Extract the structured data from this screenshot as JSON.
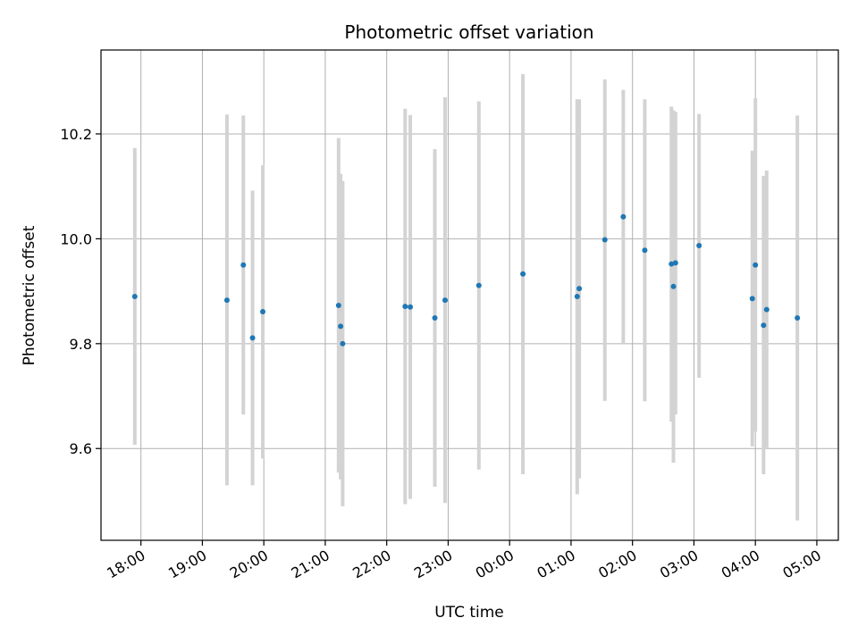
{
  "chart_data": {
    "type": "scatter",
    "title": "Photometric offset variation",
    "xlabel": "UTC time",
    "ylabel": "Photometric offset",
    "grid": true,
    "x_ticks": [
      "18:00",
      "19:00",
      "20:00",
      "21:00",
      "22:00",
      "23:00",
      "00:00",
      "01:00",
      "02:00",
      "03:00",
      "04:00",
      "05:00"
    ],
    "xlim": [
      "17:21",
      "05:21"
    ],
    "y_ticks": [
      "9.6",
      "9.8",
      "10.0",
      "10.2"
    ],
    "ylim": [
      9.425,
      10.36
    ],
    "colors": {
      "point": "#1f77b4",
      "errorbar": "#d3d3d3",
      "grid": "#b0b0b0"
    },
    "points": [
      {
        "x": "17:54",
        "y": 9.89,
        "low": 9.607,
        "high": 10.173
      },
      {
        "x": "19:24",
        "y": 9.883,
        "low": 9.53,
        "high": 10.237
      },
      {
        "x": "19:40",
        "y": 9.95,
        "low": 9.665,
        "high": 10.235
      },
      {
        "x": "19:49",
        "y": 9.811,
        "low": 9.53,
        "high": 10.092
      },
      {
        "x": "19:59",
        "y": 9.861,
        "low": 9.581,
        "high": 10.14
      },
      {
        "x": "21:13",
        "y": 9.873,
        "low": 9.554,
        "high": 10.192
      },
      {
        "x": "21:15",
        "y": 9.833,
        "low": 9.541,
        "high": 10.124
      },
      {
        "x": "21:17",
        "y": 9.8,
        "low": 9.49,
        "high": 10.11
      },
      {
        "x": "22:18",
        "y": 9.871,
        "low": 9.494,
        "high": 10.248
      },
      {
        "x": "22:23",
        "y": 9.87,
        "low": 9.504,
        "high": 10.236
      },
      {
        "x": "22:47",
        "y": 9.849,
        "low": 9.527,
        "high": 10.171
      },
      {
        "x": "22:57",
        "y": 9.883,
        "low": 9.496,
        "high": 10.27
      },
      {
        "x": "23:30",
        "y": 9.911,
        "low": 9.56,
        "high": 10.262
      },
      {
        "x": "00:13",
        "y": 9.933,
        "low": 9.551,
        "high": 10.314
      },
      {
        "x": "01:06",
        "y": 9.89,
        "low": 9.513,
        "high": 10.266
      },
      {
        "x": "01:08",
        "y": 9.905,
        "low": 9.543,
        "high": 10.266
      },
      {
        "x": "01:33",
        "y": 9.998,
        "low": 9.691,
        "high": 10.304
      },
      {
        "x": "01:51",
        "y": 10.042,
        "low": 9.8,
        "high": 10.284
      },
      {
        "x": "02:12",
        "y": 9.978,
        "low": 9.69,
        "high": 10.266
      },
      {
        "x": "02:38",
        "y": 9.952,
        "low": 9.651,
        "high": 10.252
      },
      {
        "x": "02:40",
        "y": 9.909,
        "low": 9.573,
        "high": 10.245
      },
      {
        "x": "02:42",
        "y": 9.954,
        "low": 9.665,
        "high": 10.242
      },
      {
        "x": "03:05",
        "y": 9.987,
        "low": 9.735,
        "high": 10.238
      },
      {
        "x": "03:57",
        "y": 9.886,
        "low": 9.604,
        "high": 10.168
      },
      {
        "x": "04:00",
        "y": 9.95,
        "low": 9.632,
        "high": 10.268
      },
      {
        "x": "04:08",
        "y": 9.835,
        "low": 9.551,
        "high": 10.12
      },
      {
        "x": "04:11",
        "y": 9.865,
        "low": 9.6,
        "high": 10.13
      },
      {
        "x": "04:41",
        "y": 9.849,
        "low": 9.463,
        "high": 10.235
      }
    ]
  }
}
